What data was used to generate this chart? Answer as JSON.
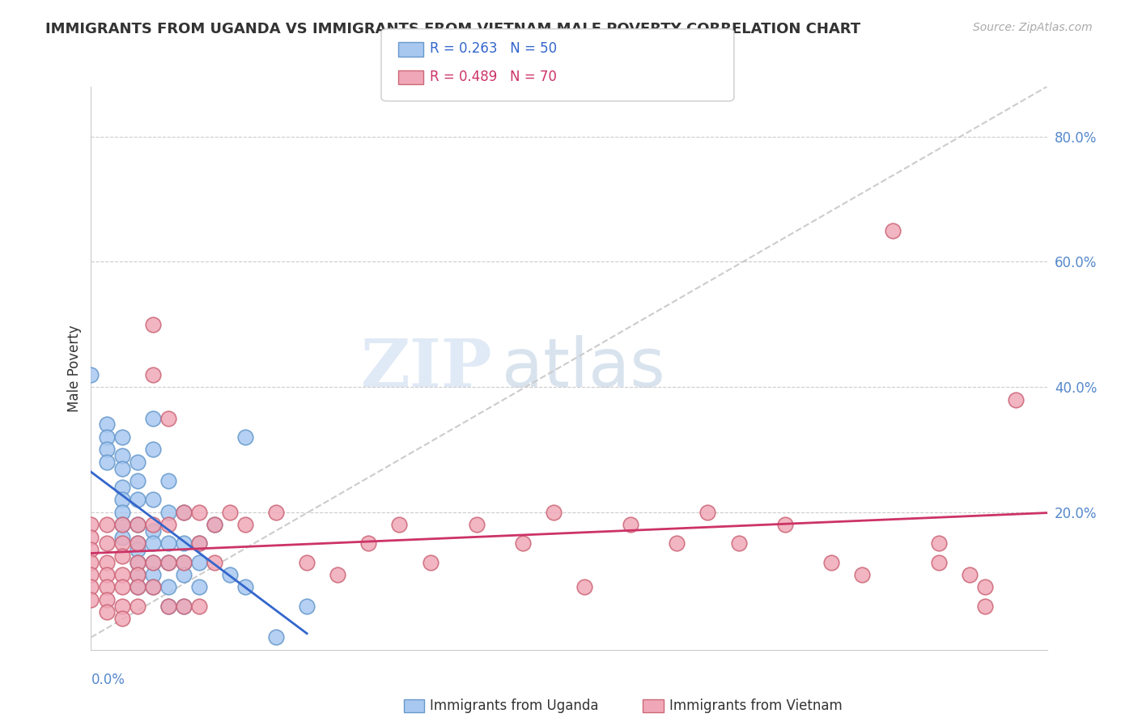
{
  "title": "IMMIGRANTS FROM UGANDA VS IMMIGRANTS FROM VIETNAM MALE POVERTY CORRELATION CHART",
  "source": "Source: ZipAtlas.com",
  "ylabel": "Male Poverty",
  "right_yticks": [
    "80.0%",
    "60.0%",
    "40.0%",
    "20.0%"
  ],
  "right_ytick_values": [
    0.8,
    0.6,
    0.4,
    0.2
  ],
  "legend1_R": "R = 0.263",
  "legend1_N": "N = 50",
  "legend2_R": "R = 0.489",
  "legend2_N": "N = 70",
  "uganda_color": "#a8c8f0",
  "uganda_edge": "#6699cc",
  "vietnam_color": "#f0a8b8",
  "vietnam_edge": "#cc6677",
  "uganda_line_color": "#3366cc",
  "vietnam_line_color": "#cc3366",
  "watermark_zip": "ZIP",
  "watermark_atlas": "atlas",
  "xlim": [
    0.0,
    0.62
  ],
  "ylim": [
    -0.02,
    0.88
  ],
  "uganda_points": [
    [
      0.0,
      0.42
    ],
    [
      0.01,
      0.34
    ],
    [
      0.01,
      0.32
    ],
    [
      0.01,
      0.3
    ],
    [
      0.01,
      0.28
    ],
    [
      0.02,
      0.32
    ],
    [
      0.02,
      0.29
    ],
    [
      0.02,
      0.27
    ],
    [
      0.02,
      0.24
    ],
    [
      0.02,
      0.22
    ],
    [
      0.02,
      0.2
    ],
    [
      0.02,
      0.18
    ],
    [
      0.02,
      0.16
    ],
    [
      0.03,
      0.28
    ],
    [
      0.03,
      0.25
    ],
    [
      0.03,
      0.22
    ],
    [
      0.03,
      0.18
    ],
    [
      0.03,
      0.15
    ],
    [
      0.03,
      0.14
    ],
    [
      0.03,
      0.12
    ],
    [
      0.03,
      0.1
    ],
    [
      0.03,
      0.08
    ],
    [
      0.04,
      0.35
    ],
    [
      0.04,
      0.3
    ],
    [
      0.04,
      0.22
    ],
    [
      0.04,
      0.17
    ],
    [
      0.04,
      0.15
    ],
    [
      0.04,
      0.12
    ],
    [
      0.04,
      0.1
    ],
    [
      0.04,
      0.08
    ],
    [
      0.05,
      0.25
    ],
    [
      0.05,
      0.2
    ],
    [
      0.05,
      0.15
    ],
    [
      0.05,
      0.12
    ],
    [
      0.05,
      0.08
    ],
    [
      0.05,
      0.05
    ],
    [
      0.06,
      0.2
    ],
    [
      0.06,
      0.15
    ],
    [
      0.06,
      0.12
    ],
    [
      0.06,
      0.1
    ],
    [
      0.06,
      0.05
    ],
    [
      0.07,
      0.15
    ],
    [
      0.07,
      0.12
    ],
    [
      0.07,
      0.08
    ],
    [
      0.08,
      0.18
    ],
    [
      0.09,
      0.1
    ],
    [
      0.1,
      0.32
    ],
    [
      0.1,
      0.08
    ],
    [
      0.12,
      0.0
    ],
    [
      0.14,
      0.05
    ]
  ],
  "vietnam_points": [
    [
      0.0,
      0.18
    ],
    [
      0.0,
      0.16
    ],
    [
      0.0,
      0.14
    ],
    [
      0.0,
      0.12
    ],
    [
      0.0,
      0.1
    ],
    [
      0.0,
      0.08
    ],
    [
      0.0,
      0.06
    ],
    [
      0.01,
      0.18
    ],
    [
      0.01,
      0.15
    ],
    [
      0.01,
      0.12
    ],
    [
      0.01,
      0.1
    ],
    [
      0.01,
      0.08
    ],
    [
      0.01,
      0.06
    ],
    [
      0.01,
      0.04
    ],
    [
      0.02,
      0.18
    ],
    [
      0.02,
      0.15
    ],
    [
      0.02,
      0.13
    ],
    [
      0.02,
      0.1
    ],
    [
      0.02,
      0.08
    ],
    [
      0.02,
      0.05
    ],
    [
      0.02,
      0.03
    ],
    [
      0.03,
      0.18
    ],
    [
      0.03,
      0.15
    ],
    [
      0.03,
      0.12
    ],
    [
      0.03,
      0.1
    ],
    [
      0.03,
      0.08
    ],
    [
      0.03,
      0.05
    ],
    [
      0.04,
      0.5
    ],
    [
      0.04,
      0.42
    ],
    [
      0.04,
      0.18
    ],
    [
      0.04,
      0.12
    ],
    [
      0.04,
      0.08
    ],
    [
      0.05,
      0.35
    ],
    [
      0.05,
      0.18
    ],
    [
      0.05,
      0.12
    ],
    [
      0.05,
      0.05
    ],
    [
      0.06,
      0.2
    ],
    [
      0.06,
      0.12
    ],
    [
      0.06,
      0.05
    ],
    [
      0.07,
      0.2
    ],
    [
      0.07,
      0.15
    ],
    [
      0.07,
      0.05
    ],
    [
      0.08,
      0.18
    ],
    [
      0.08,
      0.12
    ],
    [
      0.09,
      0.2
    ],
    [
      0.1,
      0.18
    ],
    [
      0.12,
      0.2
    ],
    [
      0.14,
      0.12
    ],
    [
      0.16,
      0.1
    ],
    [
      0.18,
      0.15
    ],
    [
      0.2,
      0.18
    ],
    [
      0.22,
      0.12
    ],
    [
      0.25,
      0.18
    ],
    [
      0.28,
      0.15
    ],
    [
      0.3,
      0.2
    ],
    [
      0.32,
      0.08
    ],
    [
      0.35,
      0.18
    ],
    [
      0.38,
      0.15
    ],
    [
      0.4,
      0.2
    ],
    [
      0.42,
      0.15
    ],
    [
      0.45,
      0.18
    ],
    [
      0.48,
      0.12
    ],
    [
      0.5,
      0.1
    ],
    [
      0.52,
      0.65
    ],
    [
      0.55,
      0.15
    ],
    [
      0.55,
      0.12
    ],
    [
      0.57,
      0.1
    ],
    [
      0.58,
      0.08
    ],
    [
      0.58,
      0.05
    ],
    [
      0.6,
      0.38
    ]
  ]
}
